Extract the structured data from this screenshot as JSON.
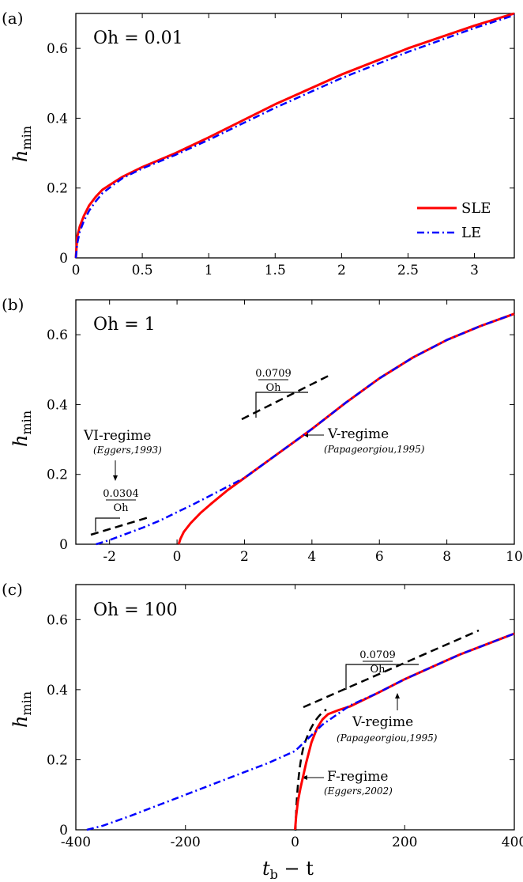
{
  "chart_data": [
    {
      "type": "line",
      "panel_label": "(a)",
      "annotation": "Oh = 0.01",
      "ylabel": "h",
      "ylabel_sub": "min",
      "xlim": [
        0,
        3.3
      ],
      "ylim": [
        0,
        0.7
      ],
      "xticks": [
        "0",
        "0.5",
        "1",
        "1.5",
        "2",
        "2.5",
        "3"
      ],
      "xtick_values": [
        0,
        0.5,
        1,
        1.5,
        2,
        2.5,
        3
      ],
      "yticks": [
        "0",
        "0.2",
        "0.4",
        "0.6"
      ],
      "ytick_values": [
        0,
        0.2,
        0.4,
        0.6
      ],
      "legend": {
        "placement": "lower-right",
        "entries": [
          "SLE",
          "LE"
        ]
      },
      "series": [
        {
          "name": "SLE",
          "color": "#ff0000",
          "style": "solid",
          "x": [
            0,
            0.01,
            0.03,
            0.06,
            0.1,
            0.15,
            0.2,
            0.3,
            0.35,
            0.5,
            0.75,
            1.0,
            1.5,
            2.0,
            2.5,
            3.0,
            3.3
          ],
          "y": [
            0,
            0.06,
            0.09,
            0.12,
            0.15,
            0.175,
            0.195,
            0.22,
            0.232,
            0.26,
            0.3,
            0.345,
            0.44,
            0.525,
            0.6,
            0.665,
            0.7
          ]
        },
        {
          "name": "LE",
          "color": "#0000ff",
          "style": "dashdot",
          "x": [
            0,
            0.01,
            0.03,
            0.06,
            0.1,
            0.15,
            0.2,
            0.3,
            0.35,
            0.5,
            0.75,
            1.0,
            1.5,
            2.0,
            2.5,
            3.0,
            3.3
          ],
          "y": [
            0,
            0.04,
            0.075,
            0.105,
            0.135,
            0.162,
            0.185,
            0.214,
            0.228,
            0.256,
            0.295,
            0.338,
            0.43,
            0.515,
            0.59,
            0.658,
            0.695
          ]
        }
      ]
    },
    {
      "type": "line",
      "panel_label": "(b)",
      "annotation": "Oh = 1",
      "ylabel": "h",
      "ylabel_sub": "min",
      "xlim": [
        -3,
        10
      ],
      "ylim": [
        0,
        0.7
      ],
      "xticks": [
        "-2",
        "0",
        "2",
        "4",
        "6",
        "8",
        "10"
      ],
      "xtick_values": [
        -2,
        0,
        2,
        4,
        6,
        8,
        10
      ],
      "yticks": [
        "0",
        "0.2",
        "0.4",
        "0.6"
      ],
      "ytick_values": [
        0,
        0.2,
        0.4,
        0.6
      ],
      "series": [
        {
          "name": "SLE",
          "color": "#ff0000",
          "style": "solid",
          "x": [
            0.05,
            0.1,
            0.2,
            0.4,
            0.7,
            1.0,
            1.5,
            2.0,
            2.5,
            3.0,
            3.5,
            4.0,
            5.0,
            6.0,
            7.0,
            8.0,
            9.0,
            10.0
          ],
          "y": [
            0,
            0.015,
            0.035,
            0.06,
            0.09,
            0.115,
            0.155,
            0.19,
            0.225,
            0.26,
            0.295,
            0.33,
            0.405,
            0.475,
            0.535,
            0.585,
            0.625,
            0.66
          ]
        },
        {
          "name": "LE",
          "color": "#0000ff",
          "style": "dashdot",
          "x": [
            -2.4,
            -2.0,
            -1.5,
            -1.0,
            -0.5,
            0,
            0.5,
            1.0,
            1.5,
            2.0,
            2.5,
            3.0,
            3.5,
            4.0,
            5.0,
            6.0,
            7.0,
            8.0,
            9.0,
            10.0
          ],
          "y": [
            0,
            0.012,
            0.03,
            0.048,
            0.068,
            0.092,
            0.115,
            0.14,
            0.165,
            0.19,
            0.225,
            0.26,
            0.295,
            0.33,
            0.405,
            0.475,
            0.535,
            0.585,
            0.625,
            0.66
          ]
        }
      ],
      "annotations": [
        {
          "text": "V-regime",
          "cite": "(Papageorgiou,1995)",
          "frac_num": "0.0709",
          "frac_den": "Oh"
        },
        {
          "text": "VI-regime",
          "cite": "(Eggers,1993)",
          "frac_num": "0.0304",
          "frac_den": "Oh"
        }
      ]
    },
    {
      "type": "line",
      "panel_label": "(c)",
      "annotation": "Oh = 100",
      "ylabel": "h",
      "ylabel_sub": "min",
      "xlabel": "t",
      "xlabel_sub": "b",
      "xlabel_rest": " − t",
      "xlim": [
        -400,
        400
      ],
      "ylim": [
        0,
        0.7
      ],
      "xticks": [
        "-400",
        "-200",
        "0",
        "200",
        "400"
      ],
      "xtick_values": [
        -400,
        -200,
        0,
        200,
        400
      ],
      "yticks": [
        "0",
        "0.2",
        "0.4",
        "0.6"
      ],
      "ytick_values": [
        0,
        0.2,
        0.4,
        0.6
      ],
      "series": [
        {
          "name": "SLE",
          "color": "#ff0000",
          "style": "solid",
          "x": [
            0,
            2,
            5,
            10,
            15,
            20,
            30,
            40,
            50,
            60,
            80,
            100,
            150,
            200,
            250,
            300,
            350,
            400
          ],
          "y": [
            0,
            0.04,
            0.08,
            0.12,
            0.155,
            0.19,
            0.25,
            0.29,
            0.315,
            0.33,
            0.342,
            0.352,
            0.39,
            0.43,
            0.465,
            0.5,
            0.53,
            0.56
          ]
        },
        {
          "name": "LE",
          "color": "#0000ff",
          "style": "dashdot",
          "x": [
            -380,
            -350,
            -300,
            -250,
            -200,
            -150,
            -100,
            -50,
            0,
            50,
            100,
            150,
            200,
            250,
            300,
            350,
            400
          ],
          "y": [
            0,
            0.012,
            0.04,
            0.07,
            0.1,
            0.13,
            0.16,
            0.19,
            0.225,
            0.3,
            0.355,
            0.39,
            0.43,
            0.465,
            0.5,
            0.53,
            0.56
          ]
        }
      ],
      "annotations": [
        {
          "text": "V-regime",
          "cite": "(Papageorgiou,1995)",
          "frac_num": "0.0709",
          "frac_den": "Oh"
        },
        {
          "text": "F-regime",
          "cite": "(Eggers,2002)"
        }
      ]
    }
  ]
}
